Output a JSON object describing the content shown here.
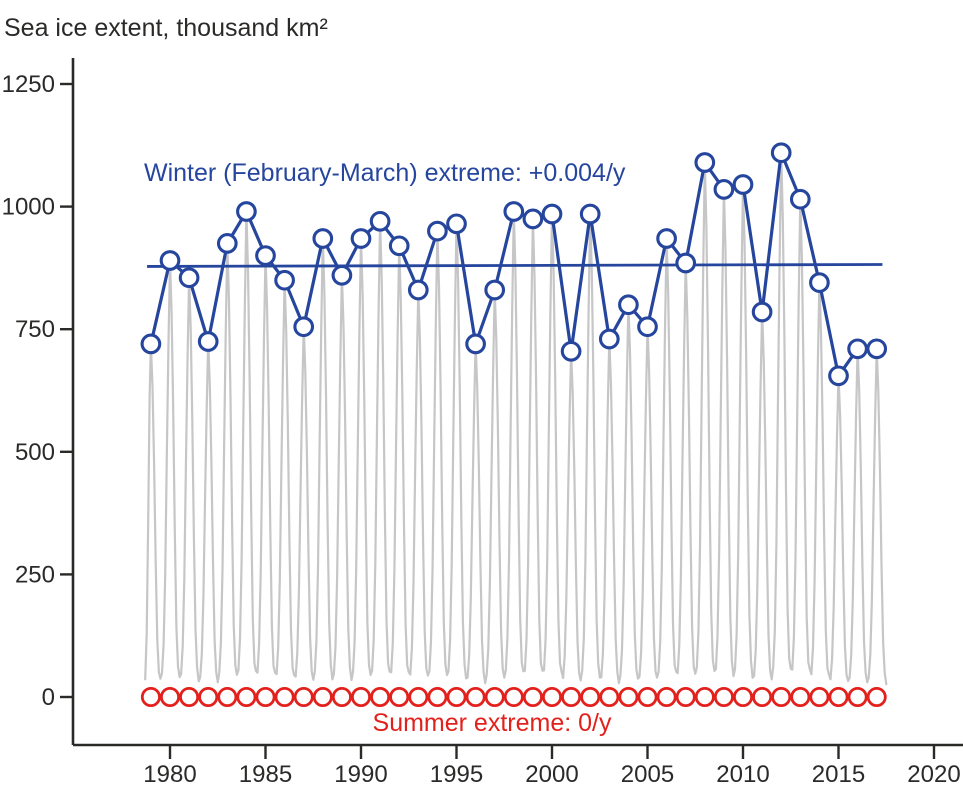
{
  "title": "Sea ice extent, thousand km²",
  "annotations": {
    "winter_label": "Winter (February-March) extreme: +0.004/y",
    "summer_label": "Summer extreme: 0/y"
  },
  "colors": {
    "winter_blue": "#26469e",
    "summer_red": "#e3211c",
    "seasonal_gray": "#c6c6c8",
    "axis": "#2b2a29"
  },
  "chart_data": {
    "type": "line",
    "title": "Sea ice extent, thousand km²",
    "ylabel": "Sea ice extent, thousand km²",
    "xlabel": "",
    "grid": false,
    "legend_position": "none",
    "xlim": [
      1975,
      2021.6
    ],
    "ylim": [
      -100,
      1300
    ],
    "x_ticks": [
      1980,
      1985,
      1990,
      1995,
      2000,
      2005,
      2010,
      2015,
      2020
    ],
    "y_ticks": [
      0,
      250,
      500,
      750,
      1000,
      1250
    ],
    "years": [
      1979,
      1980,
      1981,
      1982,
      1983,
      1984,
      1985,
      1986,
      1987,
      1988,
      1989,
      1990,
      1991,
      1992,
      1993,
      1994,
      1995,
      1996,
      1997,
      1998,
      1999,
      2000,
      2001,
      2002,
      2003,
      2004,
      2005,
      2006,
      2007,
      2008,
      2009,
      2010,
      2011,
      2012,
      2013,
      2014,
      2015,
      2016,
      2017
    ],
    "series": [
      {
        "name": "Winter (February-March) extreme",
        "style": "line+markers",
        "color": "#26469e",
        "values": [
          720,
          890,
          855,
          725,
          925,
          990,
          900,
          850,
          755,
          935,
          860,
          935,
          970,
          920,
          830,
          950,
          965,
          720,
          830,
          990,
          975,
          985,
          705,
          985,
          730,
          800,
          755,
          935,
          885,
          1090,
          1035,
          1045,
          785,
          1110,
          1015,
          845,
          655,
          710,
          710
        ]
      },
      {
        "name": "Summer extreme",
        "style": "line+markers",
        "color": "#e3211c",
        "values": [
          0,
          0,
          0,
          0,
          0,
          0,
          0,
          0,
          0,
          0,
          0,
          0,
          0,
          0,
          0,
          0,
          0,
          0,
          0,
          0,
          0,
          0,
          0,
          0,
          0,
          0,
          0,
          0,
          0,
          0,
          0,
          0,
          0,
          0,
          0,
          0,
          0,
          0,
          0
        ]
      },
      {
        "name": "Winter trend",
        "style": "trendline",
        "color": "#26469e",
        "slope_label": "+0.004/y",
        "value_start": 878,
        "value_end": 882
      },
      {
        "name": "Monthly seasonal cycle",
        "style": "line",
        "color": "#c6c6c8",
        "note": "Seasonal oscillation between winter maxima (blue markers) and summer minima of roughly 30-70 thousand km²"
      }
    ]
  }
}
